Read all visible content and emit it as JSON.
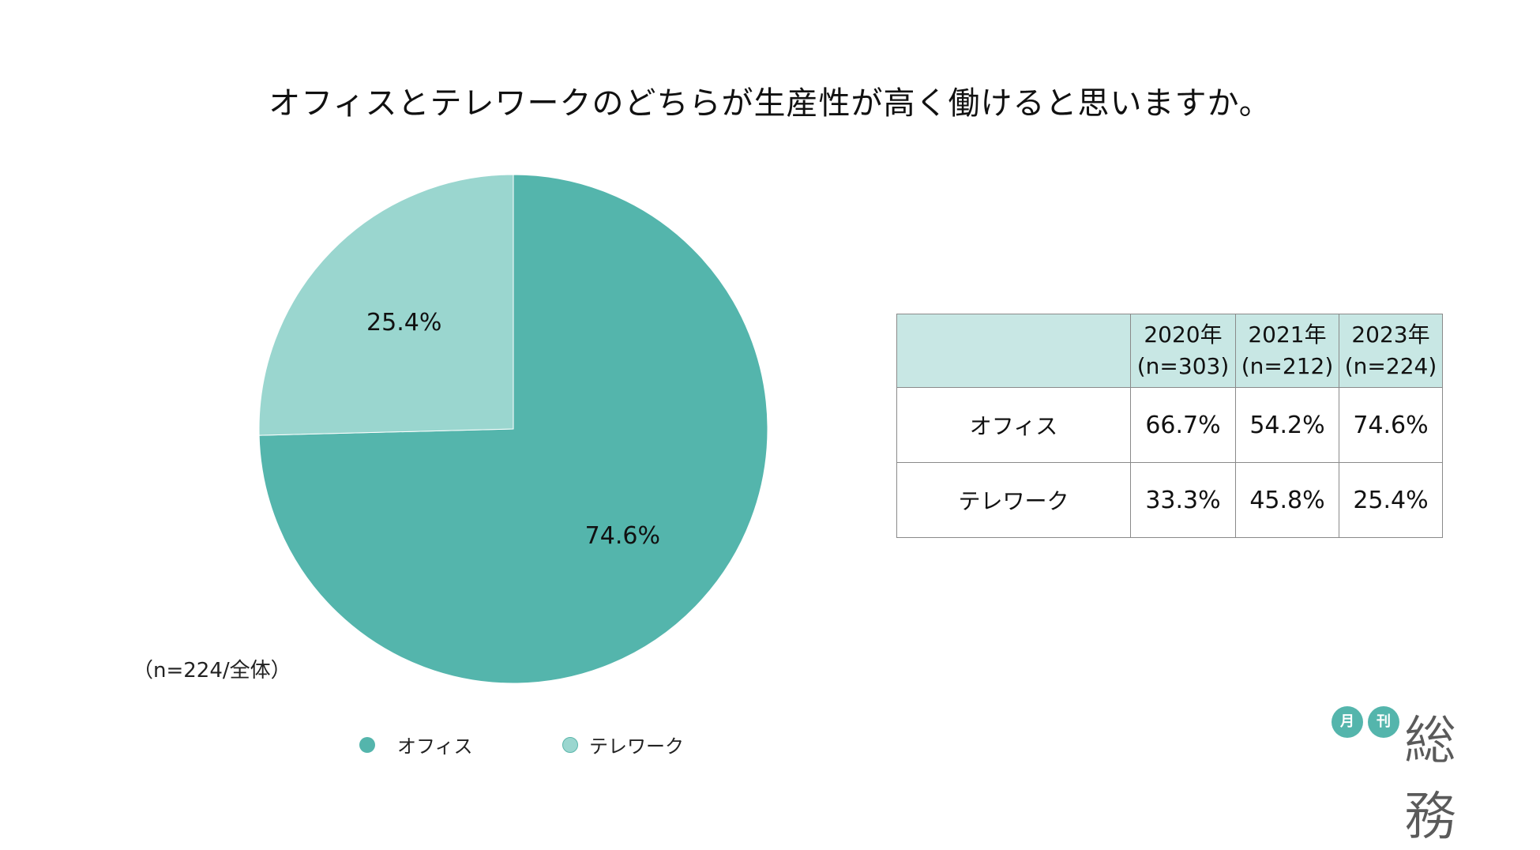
{
  "title": "オフィスとテレワークのどちらが生産性が高く働けると思いますか。",
  "note": "（n=224/全体）",
  "legend": {
    "office": "オフィス",
    "telework": "テレワーク"
  },
  "colors": {
    "office": "#54b5ac",
    "telework": "#9ad6cf",
    "table_header": "#c8e7e4",
    "brand": "#54b5ac"
  },
  "chart_data": {
    "type": "pie",
    "title": "オフィスとテレワークのどちらが生産性が高く働けると思いますか。",
    "slices": [
      {
        "name": "オフィス",
        "value": 74.6,
        "label": "74.6%"
      },
      {
        "name": "テレワーク",
        "value": 25.4,
        "label": "25.4%"
      }
    ],
    "note": "（n=224/全体）",
    "legend_placement": "bottom"
  },
  "table": {
    "headers": [
      {
        "year": "",
        "n": ""
      },
      {
        "year": "2020年",
        "n": "(n=303)"
      },
      {
        "year": "2021年",
        "n": "(n=212)"
      },
      {
        "year": "2023年",
        "n": "(n=224)"
      }
    ],
    "rows": [
      {
        "label": "オフィス",
        "values": [
          "66.7%",
          "54.2%",
          "74.6%"
        ]
      },
      {
        "label": "テレワーク",
        "values": [
          "33.3%",
          "45.8%",
          "25.4%"
        ]
      }
    ]
  },
  "brand": {
    "badge1": "月",
    "badge2": "刊",
    "name": "総務"
  }
}
